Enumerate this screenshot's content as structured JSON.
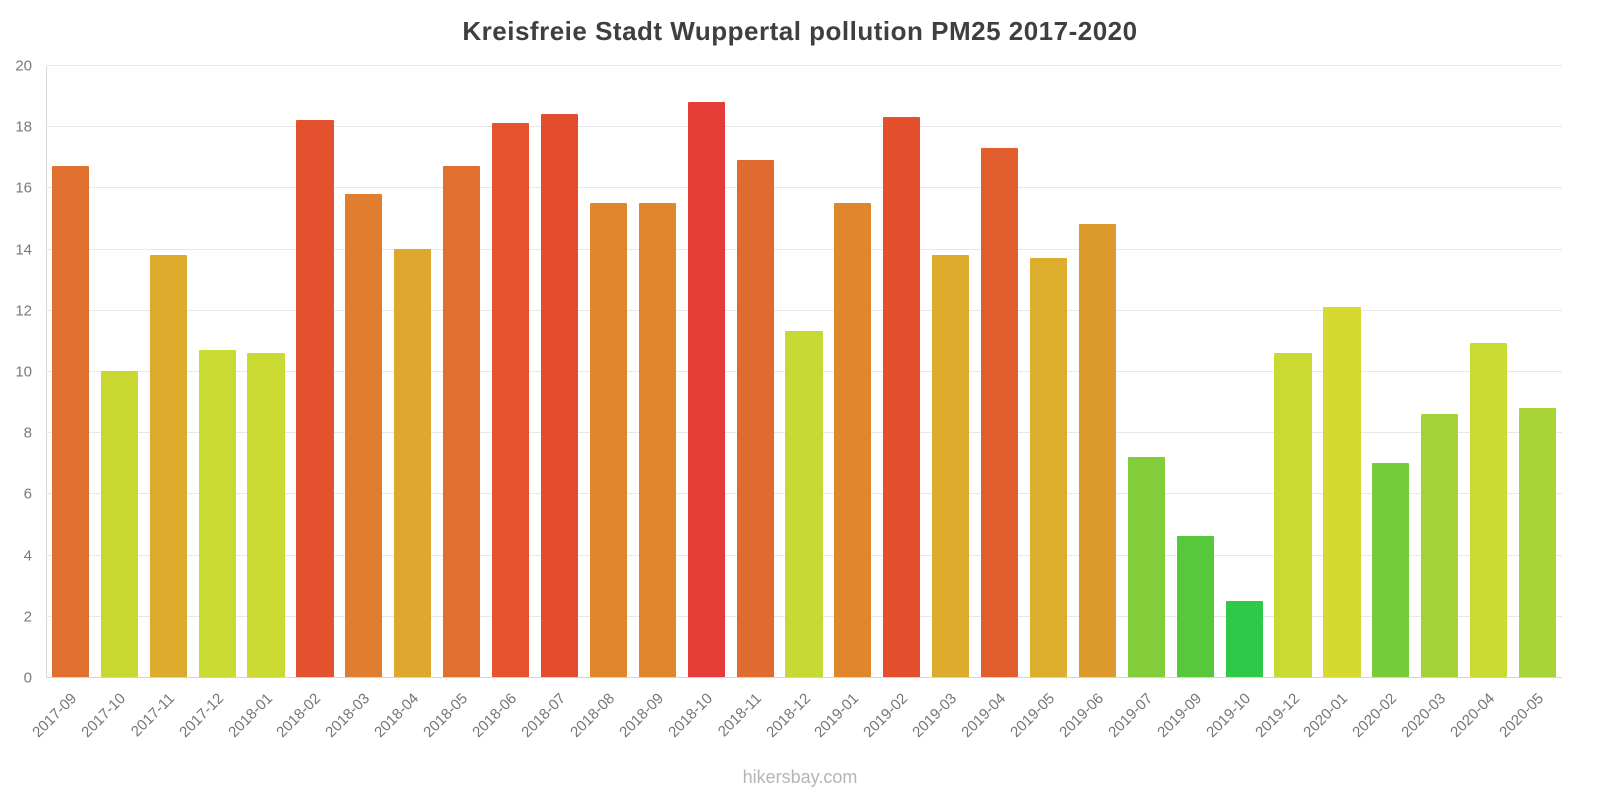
{
  "title": "Kreisfreie Stadt Wuppertal pollution PM25 2017-2020",
  "footer": "hikersbay.com",
  "chart_data": {
    "type": "bar",
    "title": "Kreisfreie Stadt Wuppertal pollution PM25 2017-2020",
    "xlabel": "",
    "ylabel": "",
    "ylim": [
      0,
      20
    ],
    "yticks": [
      0,
      2,
      4,
      6,
      8,
      10,
      12,
      14,
      16,
      18,
      20
    ],
    "grid": true,
    "legend": "none",
    "categories": [
      "2017-09",
      "2017-10",
      "2017-11",
      "2017-12",
      "2018-01",
      "2018-02",
      "2018-03",
      "2018-04",
      "2018-05",
      "2018-06",
      "2018-07",
      "2018-08",
      "2018-09",
      "2018-10",
      "2018-11",
      "2018-12",
      "2019-01",
      "2019-02",
      "2019-03",
      "2019-04",
      "2019-05",
      "2019-06",
      "2019-07",
      "2019-09",
      "2019-10",
      "2019-12",
      "2020-01",
      "2020-02",
      "2020-03",
      "2020-04",
      "2020-05"
    ],
    "values": [
      16.7,
      10.0,
      13.8,
      10.7,
      10.6,
      18.2,
      15.8,
      14.0,
      16.7,
      18.1,
      18.4,
      15.5,
      15.5,
      18.8,
      16.9,
      11.3,
      15.5,
      18.3,
      13.8,
      17.3,
      13.7,
      14.8,
      7.2,
      4.6,
      2.5,
      10.6,
      12.1,
      7.0,
      8.6,
      10.9,
      8.8
    ],
    "colors": [
      "#e07030",
      "#c8d831",
      "#ddab2c",
      "#c9da33",
      "#cada33",
      "#e4512e",
      "#e07d2e",
      "#dda82d",
      "#e06f30",
      "#e4532e",
      "#e44c2e",
      "#e0862d",
      "#e0862d",
      "#e53c38",
      "#e06b30",
      "#c6d934",
      "#e0862d",
      "#e44f2e",
      "#ddab2c",
      "#e25e2f",
      "#ddad2c",
      "#dd9a2d",
      "#82cd39",
      "#57c83c",
      "#2fc94a",
      "#cada33",
      "#d6d930",
      "#76cc3a",
      "#a3d336",
      "#c9da33",
      "#a8d435"
    ]
  }
}
